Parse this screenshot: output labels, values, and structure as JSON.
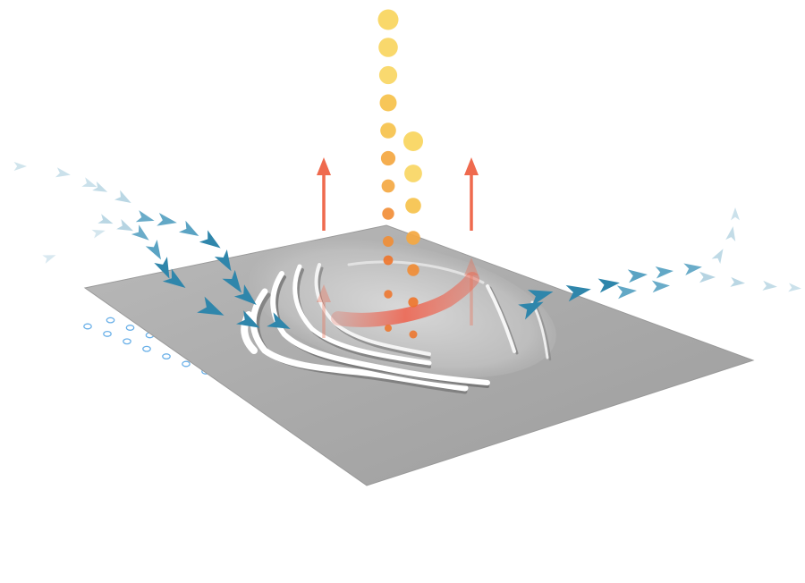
{
  "diagram": {
    "colors": {
      "plate": "#a9a9a9",
      "plate_edge": "#8f8f8f",
      "ridge_light": "#ffffff",
      "ridge_shadow": "#5b5b5b",
      "flow_dark": "#2f86ab",
      "flow_mid": "#5aa3c3",
      "flow_light": "#a9cddd",
      "heat_arrow": "#ef6a4e",
      "heat_band": "#ee5f4a",
      "dot_ring": "#5aa7e6",
      "particle_palette": [
        "#f9d86a",
        "#f7c451",
        "#f4a842",
        "#f28c33",
        "#ef7226"
      ]
    },
    "grid_dots": {
      "rows": 12,
      "cols": 15
    },
    "particle_columns": [
      {
        "name": "left-column",
        "count": 12
      },
      {
        "name": "right-column",
        "count": 7
      }
    ],
    "heat_arrows": 4,
    "flow_paths": [
      "upper-left-incoming",
      "middle-left-incoming",
      "far-left-faint",
      "outgoing-right"
    ]
  }
}
